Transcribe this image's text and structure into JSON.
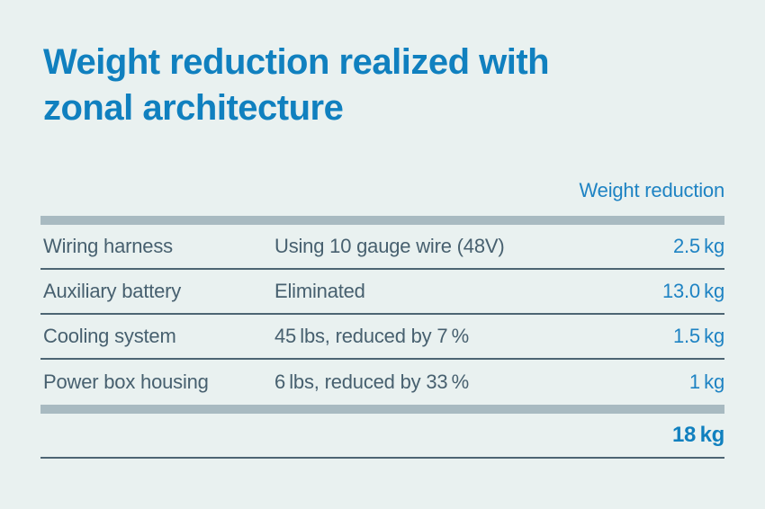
{
  "title": {
    "line1": "Weight reduction realized with",
    "line2": "zonal architecture"
  },
  "table": {
    "value_column_header": "Weight reduction",
    "rows": [
      {
        "item": "Wiring harness",
        "description": "Using 10 gauge wire (48V)",
        "value": "2.5 kg"
      },
      {
        "item": "Auxiliary battery",
        "description": "Eliminated",
        "value": "13.0 kg"
      },
      {
        "item": "Cooling system",
        "description": "45 lbs, reduced by 7 %",
        "value": "1.5 kg"
      },
      {
        "item": "Power box housing",
        "description": "6 lbs, reduced by 33 %",
        "value": "1 kg"
      }
    ],
    "total": "18 kg"
  },
  "colors": {
    "bg": "#e9f1f0",
    "title-blue": "#1080bf",
    "value-blue": "#1e83c3",
    "body-slate": "#47606f",
    "rule-slate": "#4d6573",
    "bar-gray": "#a8bac1"
  }
}
